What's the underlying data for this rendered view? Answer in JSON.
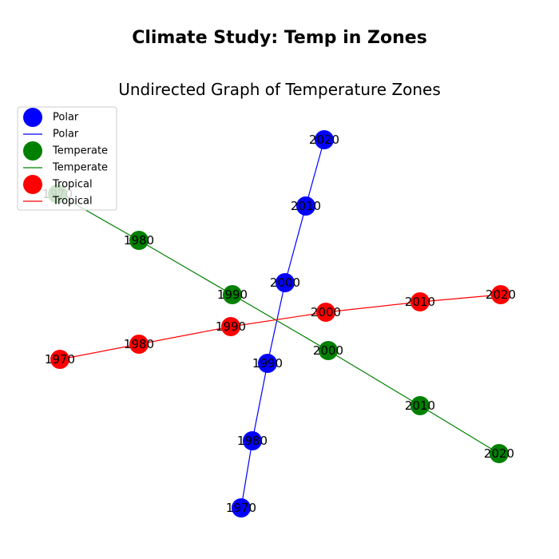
{
  "figure": {
    "title": "Climate Study: Temp in Zones",
    "subtitle": "Undirected Graph of Temperature Zones"
  },
  "legend": {
    "placement": "upper-left",
    "items": [
      {
        "kind": "marker",
        "label": "Polar",
        "color": "#0000ff"
      },
      {
        "kind": "line",
        "label": "Polar",
        "color": "#0000ff"
      },
      {
        "kind": "marker",
        "label": "Temperate",
        "color": "#008000"
      },
      {
        "kind": "line",
        "label": "Temperate",
        "color": "#008000"
      },
      {
        "kind": "marker",
        "label": "Tropical",
        "color": "#ff0000"
      },
      {
        "kind": "line",
        "label": "Tropical",
        "color": "#ff0000"
      }
    ]
  },
  "chart_data": {
    "type": "graph",
    "directed": false,
    "series": [
      {
        "name": "Polar",
        "color": "#0000ff",
        "nodes": [
          "1970",
          "1980",
          "1990",
          "2000",
          "2010",
          "2020"
        ]
      },
      {
        "name": "Temperate",
        "color": "#008000",
        "nodes": [
          "1970",
          "1980",
          "1990",
          "2000",
          "2010",
          "2020"
        ]
      },
      {
        "name": "Tropical",
        "color": "#ff0000",
        "nodes": [
          "1970",
          "1980",
          "1990",
          "2000",
          "2010",
          "2020"
        ]
      }
    ],
    "edges": "consecutive decades connected within each zone"
  }
}
